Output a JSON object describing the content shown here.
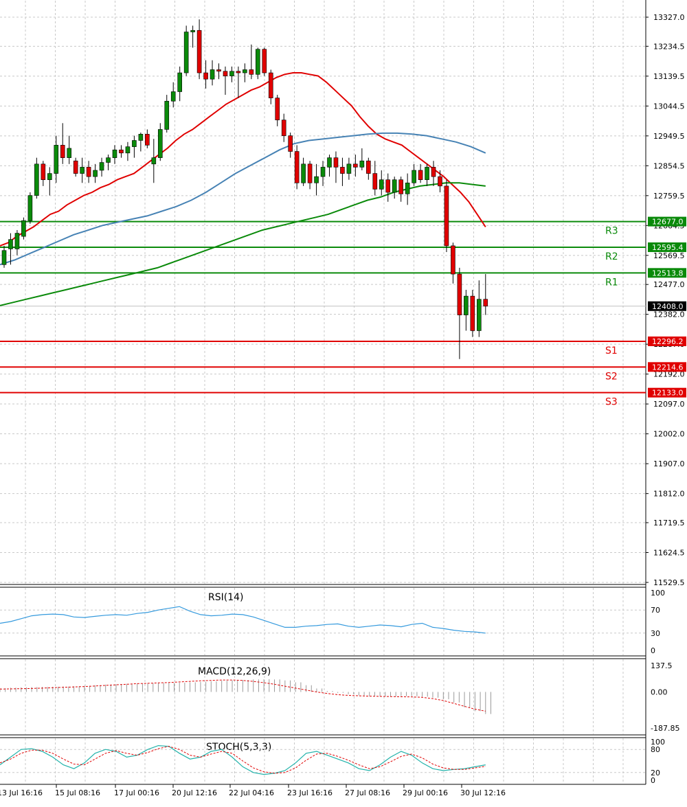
{
  "chart_data": {
    "type": "candlestick",
    "main": {
      "price_axis_ticks": [
        "13327.0",
        "13234.5",
        "13139.5",
        "13044.5",
        "12949.5",
        "12854.5",
        "12759.5",
        "12664.5",
        "12569.5",
        "12477.0",
        "12382.0",
        "12287.0",
        "12192.0",
        "12097.0",
        "12002.0",
        "11907.0",
        "11812.0",
        "11719.5",
        "11624.5",
        "11529.5"
      ],
      "ylim": [
        11529.5,
        13327.0
      ],
      "current_price": 12408.0,
      "current_price_label": "12408.0",
      "levels": [
        {
          "name": "R3",
          "value": 12677.0,
          "label": "12677.0",
          "color": "#0a8a0a"
        },
        {
          "name": "R2",
          "value": 12595.4,
          "label": "12595.4",
          "color": "#0a8a0a"
        },
        {
          "name": "R1",
          "value": 12513.8,
          "label": "12513.8",
          "color": "#0a8a0a"
        },
        {
          "name": "S1",
          "value": 12296.2,
          "label": "12296.2",
          "color": "#e00000"
        },
        {
          "name": "S2",
          "value": 12214.6,
          "label": "12214.6",
          "color": "#e00000"
        },
        {
          "name": "S3",
          "value": 12133.0,
          "label": "12133.0",
          "color": "#e00000"
        }
      ],
      "candles": [
        {
          "o": 12540,
          "h": 12600,
          "l": 12530,
          "c": 12585
        },
        {
          "o": 12590,
          "h": 12640,
          "l": 12540,
          "c": 12620
        },
        {
          "o": 12590,
          "h": 12650,
          "l": 12570,
          "c": 12640
        },
        {
          "o": 12630,
          "h": 12690,
          "l": 12620,
          "c": 12680
        },
        {
          "o": 12680,
          "h": 12770,
          "l": 12670,
          "c": 12760
        },
        {
          "o": 12760,
          "h": 12880,
          "l": 12750,
          "c": 12860
        },
        {
          "o": 12860,
          "h": 12870,
          "l": 12790,
          "c": 12810
        },
        {
          "o": 12810,
          "h": 12850,
          "l": 12760,
          "c": 12830
        },
        {
          "o": 12830,
          "h": 12950,
          "l": 12800,
          "c": 12920
        },
        {
          "o": 12920,
          "h": 12990,
          "l": 12860,
          "c": 12880
        },
        {
          "o": 12880,
          "h": 12950,
          "l": 12860,
          "c": 12910
        },
        {
          "o": 12870,
          "h": 12880,
          "l": 12820,
          "c": 12830
        },
        {
          "o": 12830,
          "h": 12880,
          "l": 12800,
          "c": 12850
        },
        {
          "o": 12850,
          "h": 12870,
          "l": 12800,
          "c": 12820
        },
        {
          "o": 12820,
          "h": 12860,
          "l": 12800,
          "c": 12840
        },
        {
          "o": 12840,
          "h": 12880,
          "l": 12820,
          "c": 12865
        },
        {
          "o": 12865,
          "h": 12890,
          "l": 12840,
          "c": 12880
        },
        {
          "o": 12880,
          "h": 12920,
          "l": 12860,
          "c": 12905
        },
        {
          "o": 12905,
          "h": 12920,
          "l": 12880,
          "c": 12895
        },
        {
          "o": 12895,
          "h": 12930,
          "l": 12870,
          "c": 12915
        },
        {
          "o": 12915,
          "h": 12950,
          "l": 12880,
          "c": 12935
        },
        {
          "o": 12935,
          "h": 12960,
          "l": 12900,
          "c": 12955
        },
        {
          "o": 12955,
          "h": 12970,
          "l": 12910,
          "c": 12920
        },
        {
          "o": 12860,
          "h": 12940,
          "l": 12800,
          "c": 12880
        },
        {
          "o": 12880,
          "h": 12990,
          "l": 12870,
          "c": 12970
        },
        {
          "o": 12970,
          "h": 13080,
          "l": 12960,
          "c": 13060
        },
        {
          "o": 13060,
          "h": 13120,
          "l": 13040,
          "c": 13090
        },
        {
          "o": 13090,
          "h": 13170,
          "l": 13060,
          "c": 13150
        },
        {
          "o": 13150,
          "h": 13300,
          "l": 13140,
          "c": 13280
        },
        {
          "o": 13280,
          "h": 13300,
          "l": 13230,
          "c": 13285
        },
        {
          "o": 13285,
          "h": 13320,
          "l": 13130,
          "c": 13150
        },
        {
          "o": 13150,
          "h": 13190,
          "l": 13100,
          "c": 13130
        },
        {
          "o": 13130,
          "h": 13190,
          "l": 13110,
          "c": 13160
        },
        {
          "o": 13160,
          "h": 13180,
          "l": 13130,
          "c": 13155
        },
        {
          "o": 13155,
          "h": 13170,
          "l": 13080,
          "c": 13140
        },
        {
          "o": 13140,
          "h": 13170,
          "l": 13120,
          "c": 13155
        },
        {
          "o": 13155,
          "h": 13170,
          "l": 13070,
          "c": 13150
        },
        {
          "o": 13150,
          "h": 13180,
          "l": 13120,
          "c": 13160
        },
        {
          "o": 13160,
          "h": 13240,
          "l": 13130,
          "c": 13145
        },
        {
          "o": 13145,
          "h": 13230,
          "l": 13130,
          "c": 13225
        },
        {
          "o": 13225,
          "h": 13230,
          "l": 13140,
          "c": 13150
        },
        {
          "o": 13150,
          "h": 13160,
          "l": 13050,
          "c": 13070
        },
        {
          "o": 13070,
          "h": 13080,
          "l": 12980,
          "c": 13000
        },
        {
          "o": 13000,
          "h": 13020,
          "l": 12930,
          "c": 12950
        },
        {
          "o": 12950,
          "h": 12960,
          "l": 12880,
          "c": 12900
        },
        {
          "o": 12900,
          "h": 12920,
          "l": 12780,
          "c": 12800
        },
        {
          "o": 12800,
          "h": 12880,
          "l": 12790,
          "c": 12860
        },
        {
          "o": 12860,
          "h": 12870,
          "l": 12780,
          "c": 12800
        },
        {
          "o": 12800,
          "h": 12860,
          "l": 12760,
          "c": 12820
        },
        {
          "o": 12820,
          "h": 12870,
          "l": 12790,
          "c": 12850
        },
        {
          "o": 12850,
          "h": 12890,
          "l": 12820,
          "c": 12880
        },
        {
          "o": 12880,
          "h": 12900,
          "l": 12800,
          "c": 12850
        },
        {
          "o": 12850,
          "h": 12880,
          "l": 12790,
          "c": 12830
        },
        {
          "o": 12830,
          "h": 12880,
          "l": 12810,
          "c": 12860
        },
        {
          "o": 12860,
          "h": 12890,
          "l": 12820,
          "c": 12850
        },
        {
          "o": 12850,
          "h": 12910,
          "l": 12840,
          "c": 12870
        },
        {
          "o": 12870,
          "h": 12880,
          "l": 12810,
          "c": 12830
        },
        {
          "o": 12830,
          "h": 12870,
          "l": 12760,
          "c": 12780
        },
        {
          "o": 12780,
          "h": 12840,
          "l": 12760,
          "c": 12810
        },
        {
          "o": 12810,
          "h": 12830,
          "l": 12740,
          "c": 12770
        },
        {
          "o": 12770,
          "h": 12820,
          "l": 12750,
          "c": 12810
        },
        {
          "o": 12810,
          "h": 12820,
          "l": 12740,
          "c": 12765
        },
        {
          "o": 12765,
          "h": 12830,
          "l": 12730,
          "c": 12800
        },
        {
          "o": 12800,
          "h": 12860,
          "l": 12790,
          "c": 12840
        },
        {
          "o": 12840,
          "h": 12860,
          "l": 12800,
          "c": 12810
        },
        {
          "o": 12810,
          "h": 12860,
          "l": 12790,
          "c": 12850
        },
        {
          "o": 12850,
          "h": 12870,
          "l": 12790,
          "c": 12820
        },
        {
          "o": 12820,
          "h": 12840,
          "l": 12770,
          "c": 12790
        },
        {
          "o": 12790,
          "h": 12810,
          "l": 12580,
          "c": 12600
        },
        {
          "o": 12600,
          "h": 12610,
          "l": 12480,
          "c": 12510
        },
        {
          "o": 12510,
          "h": 12530,
          "l": 12240,
          "c": 12380
        },
        {
          "o": 12380,
          "h": 12460,
          "l": 12330,
          "c": 12440
        },
        {
          "o": 12440,
          "h": 12460,
          "l": 12310,
          "c": 12330
        },
        {
          "o": 12330,
          "h": 12490,
          "l": 12310,
          "c": 12430
        },
        {
          "o": 12430,
          "h": 12510,
          "l": 12380,
          "c": 12408
        }
      ],
      "ma_fast_red": [
        12600,
        12610,
        12630,
        12645,
        12660,
        12680,
        12700,
        12710,
        12730,
        12745,
        12760,
        12770,
        12785,
        12795,
        12810,
        12820,
        12830,
        12850,
        12870,
        12890,
        12910,
        12935,
        12955,
        12970,
        12990,
        13010,
        13030,
        13050,
        13065,
        13080,
        13095,
        13105,
        13120,
        13135,
        13145,
        13150,
        13150,
        13145,
        13140,
        13120,
        13095,
        13070,
        13045,
        13010,
        12980,
        12955,
        12940,
        12930,
        12920,
        12900,
        12880,
        12860,
        12840,
        12820,
        12795,
        12770,
        12740,
        12700,
        12660
      ],
      "ma_mid_blue": [
        12540,
        12555,
        12575,
        12595,
        12615,
        12635,
        12650,
        12665,
        12675,
        12685,
        12695,
        12710,
        12725,
        12745,
        12770,
        12800,
        12830,
        12855,
        12880,
        12905,
        12925,
        12935,
        12940,
        12945,
        12950,
        12955,
        12958,
        12958,
        12955,
        12950,
        12940,
        12930,
        12915,
        12895
      ],
      "ma_slow_green": [
        12410,
        12420,
        12430,
        12440,
        12450,
        12460,
        12470,
        12480,
        12490,
        12500,
        12510,
        12520,
        12530,
        12545,
        12560,
        12575,
        12590,
        12605,
        12620,
        12635,
        12650,
        12660,
        12670,
        12680,
        12690,
        12700,
        12715,
        12730,
        12745,
        12755,
        12770,
        12780,
        12790,
        12795,
        12800,
        12800,
        12795,
        12790
      ]
    },
    "rsi": {
      "title": "RSI(14)",
      "ticks": [
        "100",
        "70",
        "30",
        "0"
      ],
      "series": [
        47,
        50,
        55,
        60,
        62,
        63,
        62,
        58,
        57,
        59,
        61,
        62,
        61,
        64,
        66,
        70,
        73,
        76,
        68,
        62,
        60,
        61,
        63,
        62,
        58,
        52,
        46,
        40,
        40,
        42,
        43,
        45,
        46,
        42,
        40,
        42,
        44,
        43,
        41,
        45,
        47,
        40,
        38,
        35,
        33,
        32,
        30
      ]
    },
    "macd": {
      "title": "MACD(12,26,9)",
      "ticks": [
        "137.5",
        "0.00",
        "-187.85"
      ],
      "hist": [
        20,
        22,
        24,
        25,
        26,
        27,
        28,
        30,
        32,
        35,
        38,
        40,
        42,
        44,
        45,
        46,
        47,
        48,
        50,
        52,
        55,
        58,
        60,
        62,
        65,
        66,
        65,
        60,
        50,
        35,
        18,
        5,
        -5,
        -12,
        -18,
        -22,
        -24,
        -24,
        -22,
        -22,
        -25,
        -30,
        -38,
        -55,
        -80,
        -100,
        -115
      ],
      "signal": [
        15,
        16,
        17,
        18,
        20,
        22,
        24,
        26,
        28,
        31,
        34,
        37,
        40,
        43,
        45,
        47,
        49,
        52,
        55,
        58,
        60,
        62,
        62,
        60,
        55,
        48,
        40,
        30,
        20,
        10,
        0,
        -8,
        -14,
        -18,
        -20,
        -22,
        -23,
        -24,
        -25,
        -26,
        -28,
        -35,
        -45,
        -60,
        -75,
        -90,
        -100
      ]
    },
    "stoch": {
      "title": "STOCH(5,3,3)",
      "ticks": [
        "100",
        "80",
        "20",
        "0"
      ],
      "k": [
        40,
        60,
        80,
        82,
        75,
        60,
        40,
        30,
        45,
        70,
        80,
        75,
        60,
        65,
        80,
        90,
        88,
        70,
        55,
        60,
        75,
        80,
        60,
        35,
        20,
        15,
        18,
        25,
        45,
        70,
        75,
        65,
        55,
        45,
        30,
        25,
        40,
        60,
        75,
        65,
        45,
        30,
        25,
        28,
        30,
        35,
        40
      ],
      "d": [
        45,
        55,
        70,
        78,
        78,
        70,
        55,
        42,
        40,
        55,
        70,
        77,
        70,
        65,
        72,
        82,
        88,
        80,
        65,
        60,
        68,
        75,
        70,
        50,
        32,
        22,
        18,
        20,
        32,
        52,
        68,
        70,
        62,
        52,
        40,
        30,
        35,
        48,
        62,
        68,
        58,
        42,
        32,
        28,
        28,
        32,
        36
      ]
    },
    "x_axis_labels": [
      "13 Jul 16:16",
      "15 Jul 08:16",
      "17 Jul 00:16",
      "20 Jul 12:16",
      "22 Jul 04:16",
      "23 Jul 16:16",
      "27 Jul 08:16",
      "29 Jul 00:16",
      "30 Jul 12:16"
    ],
    "colors": {
      "bull": "#0a8a0a",
      "bear": "#e00000",
      "ma_red": "#e00000",
      "ma_blue": "#4682b4",
      "ma_green": "#0a8a0a",
      "rsi_line": "#3399dd",
      "macd_hist": "#999999",
      "macd_signal": "#e00000",
      "stoch_k": "#20b2aa",
      "stoch_d": "#e00000",
      "grid": "#c8c8c8"
    }
  }
}
